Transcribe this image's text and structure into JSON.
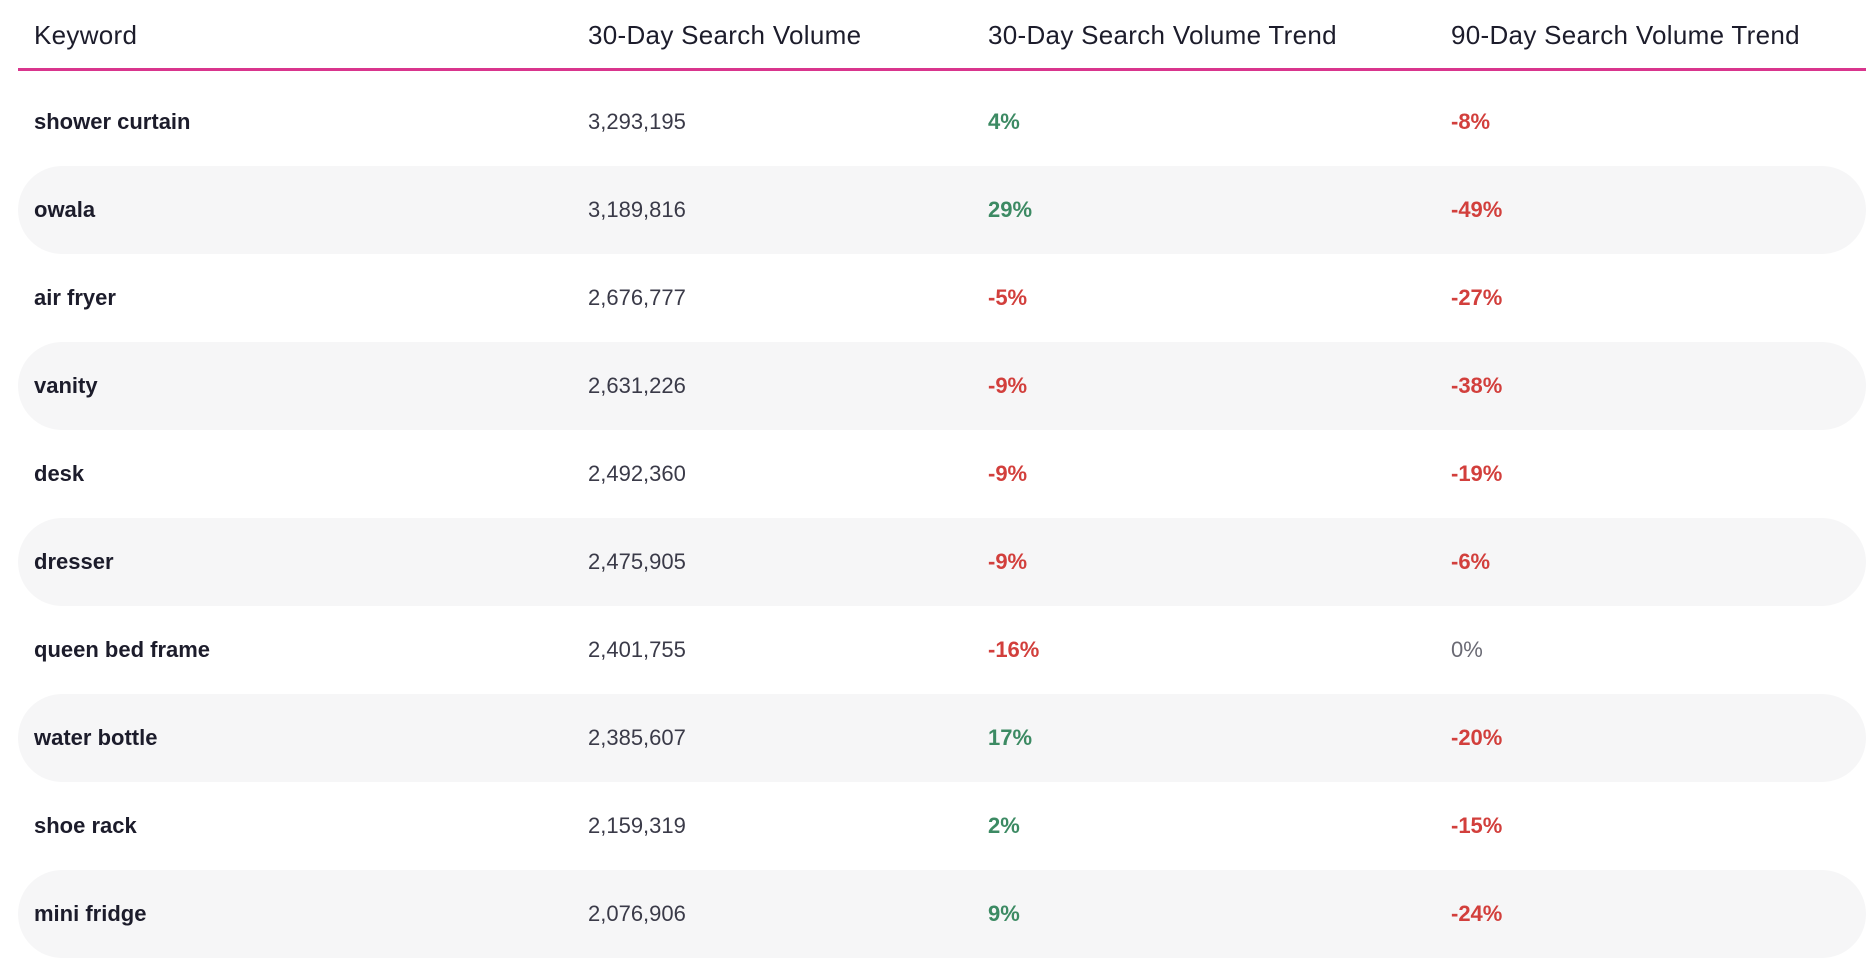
{
  "table": {
    "headers": [
      "Keyword",
      "30-Day Search Volume",
      "30-Day Search Volume Trend",
      "90-Day Search Volume Trend"
    ],
    "rows": [
      {
        "keyword": "shower curtain",
        "volume": "3,293,195",
        "trend30": "4%",
        "trend90": "-8%"
      },
      {
        "keyword": "owala",
        "volume": "3,189,816",
        "trend30": "29%",
        "trend90": "-49%"
      },
      {
        "keyword": "air fryer",
        "volume": "2,676,777",
        "trend30": "-5%",
        "trend90": "-27%"
      },
      {
        "keyword": "vanity",
        "volume": "2,631,226",
        "trend30": "-9%",
        "trend90": "-38%"
      },
      {
        "keyword": "desk",
        "volume": "2,492,360",
        "trend30": "-9%",
        "trend90": "-19%"
      },
      {
        "keyword": "dresser",
        "volume": "2,475,905",
        "trend30": "-9%",
        "trend90": "-6%"
      },
      {
        "keyword": "queen bed frame",
        "volume": "2,401,755",
        "trend30": "-16%",
        "trend90": "0%"
      },
      {
        "keyword": "water bottle",
        "volume": "2,385,607",
        "trend30": "17%",
        "trend90": "-20%"
      },
      {
        "keyword": "shoe rack",
        "volume": "2,159,319",
        "trend30": "2%",
        "trend90": "-15%"
      },
      {
        "keyword": "mini fridge",
        "volume": "2,076,906",
        "trend30": "9%",
        "trend90": "-24%"
      }
    ]
  },
  "colors": {
    "header_rule": "#d9358d",
    "positive": "#3c8a63",
    "negative": "#d23f3c",
    "neutral": "#6a6a74",
    "alt_row": "#f6f6f7"
  }
}
